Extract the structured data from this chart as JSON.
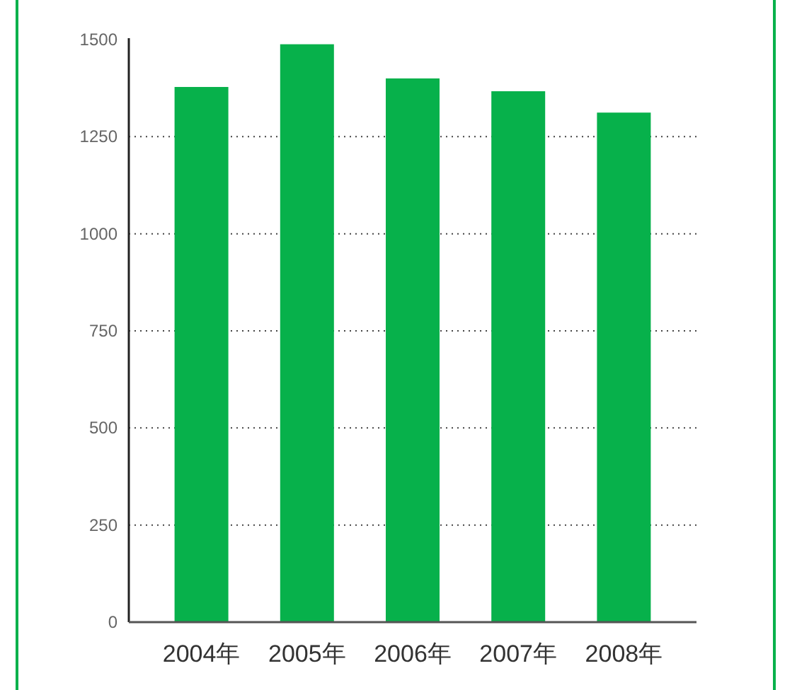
{
  "chart_data": {
    "type": "bar",
    "categories": [
      "2004年",
      "2005年",
      "2006年",
      "2007年",
      "2008年"
    ],
    "values": [
      1378,
      1488,
      1400,
      1367,
      1312
    ],
    "color": "#07b14b",
    "ylim": [
      0,
      1500
    ],
    "yticks": [
      0,
      250,
      500,
      750,
      1000,
      1250,
      1500
    ],
    "grid": "y"
  }
}
